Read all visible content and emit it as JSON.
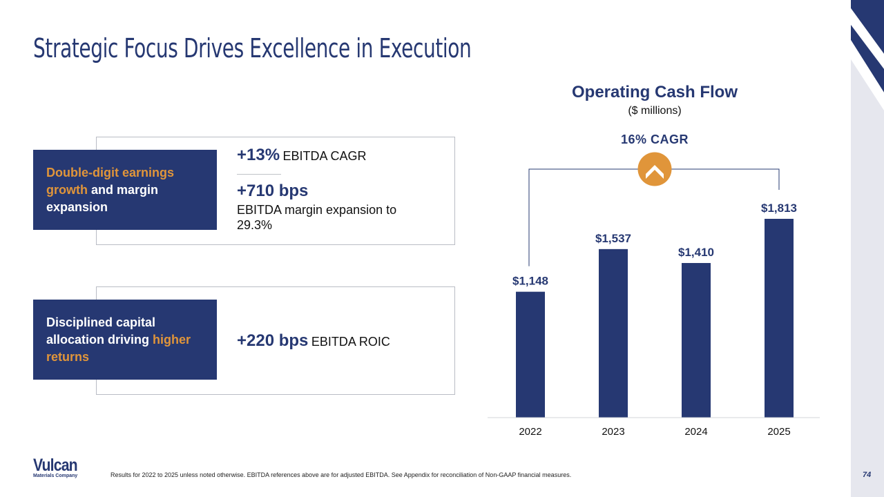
{
  "slide": {
    "title": "Strategic Focus Drives Excellence in Execution",
    "page_number": "74",
    "footnote": "Results for 2022 to 2025 unless noted otherwise. EBITDA references above are for adjusted EBITDA. See Appendix for reconciliation of Non-GAAP financial measures.",
    "logo": {
      "name": "Vulcan",
      "tagline": "Materials Company"
    }
  },
  "colors": {
    "navy": "#263872",
    "accent_orange": "#e0953a",
    "strip_gray": "#e6e7ee",
    "border_gray": "#b9bcc4"
  },
  "cards": [
    {
      "label_parts": [
        {
          "text": "Double-digit earnings growth",
          "accent": true
        },
        {
          "text": " and margin expansion",
          "accent": false
        }
      ],
      "metrics": [
        {
          "value": "+13%",
          "desc": "EBITDA CAGR"
        },
        {
          "value": "+710 bps",
          "desc": "EBITDA margin expansion to 29.3%"
        }
      ]
    },
    {
      "label_parts": [
        {
          "text": "Disciplined capital allocation driving ",
          "accent": false
        },
        {
          "text": "higher returns",
          "accent": true
        }
      ],
      "metrics": [
        {
          "value": "+220 bps",
          "desc": "EBITDA ROIC"
        }
      ]
    }
  ],
  "chart_data": {
    "type": "bar",
    "title": "Operating Cash Flow",
    "subtitle": "($ millions)",
    "annotation": "16% CAGR",
    "annotation_icon": "chevron-up-icon",
    "categories": [
      "2022",
      "2023",
      "2024",
      "2025"
    ],
    "values": [
      1148,
      1537,
      1410,
      1813
    ],
    "data_labels": [
      "$1,148",
      "$1,537",
      "$1,410",
      "$1,813"
    ],
    "xlabel": "",
    "ylabel": "",
    "ylim": [
      0,
      1813
    ],
    "grid": false,
    "legend": "none"
  }
}
